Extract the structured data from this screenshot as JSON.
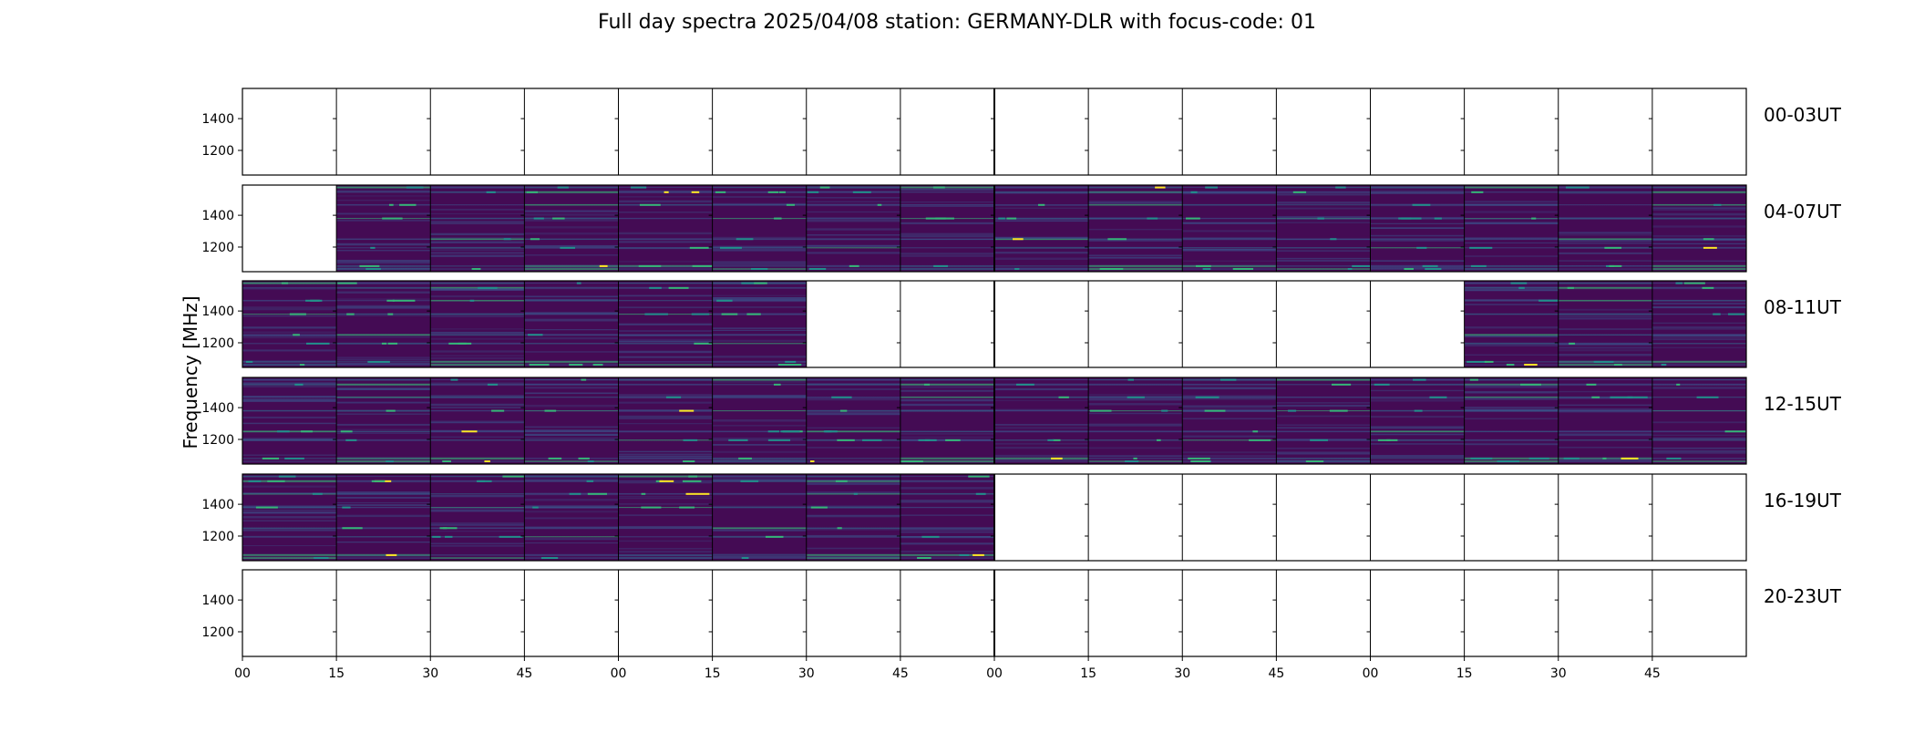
{
  "chart_data": {
    "type": "heatmap",
    "title": "Full day spectra 2025/04/08 station: GERMANY-DLR with focus-code: 01",
    "ylabel": "Frequency [MHz]",
    "xlabel": "",
    "y_ticks": [
      "1400",
      "1200"
    ],
    "y_tick_values": [
      1400,
      1200
    ],
    "ylim": [
      1045,
      1590
    ],
    "x_tick_labels": [
      "00",
      "15",
      "30",
      "45",
      "00",
      "15",
      "30",
      "45",
      "00",
      "15",
      "30",
      "45",
      "00",
      "15",
      "30",
      "45"
    ],
    "columns_per_row": 16,
    "minutes_per_column": 15,
    "colormap": "viridis",
    "empty_color": "#ffffff",
    "rows": [
      {
        "label": "00-03UT",
        "filled": [
          false,
          false,
          false,
          false,
          false,
          false,
          false,
          false,
          false,
          false,
          false,
          false,
          false,
          false,
          false,
          false
        ]
      },
      {
        "label": "04-07UT",
        "filled": [
          false,
          true,
          true,
          true,
          true,
          true,
          true,
          true,
          true,
          true,
          true,
          true,
          true,
          true,
          true,
          true
        ]
      },
      {
        "label": "08-11UT",
        "filled": [
          true,
          true,
          true,
          true,
          true,
          true,
          false,
          false,
          false,
          false,
          false,
          false,
          false,
          true,
          true,
          true
        ]
      },
      {
        "label": "12-15UT",
        "filled": [
          true,
          true,
          true,
          true,
          true,
          true,
          true,
          true,
          true,
          true,
          true,
          true,
          true,
          true,
          true,
          true
        ]
      },
      {
        "label": "16-19UT",
        "filled": [
          true,
          true,
          true,
          true,
          true,
          true,
          true,
          true,
          false,
          false,
          false,
          false,
          false,
          false,
          false,
          false
        ]
      },
      {
        "label": "20-23UT",
        "filled": [
          false,
          false,
          false,
          false,
          false,
          false,
          false,
          false,
          false,
          false,
          false,
          false,
          false,
          false,
          false,
          false
        ]
      }
    ],
    "emission_bands_mhz": [
      1575,
      1545,
      1465,
      1380,
      1250,
      1195,
      1080,
      1062
    ],
    "colors": {
      "background": "#440b54",
      "mid": "#31688e",
      "high": "#35b779",
      "peak": "#fde725"
    }
  }
}
